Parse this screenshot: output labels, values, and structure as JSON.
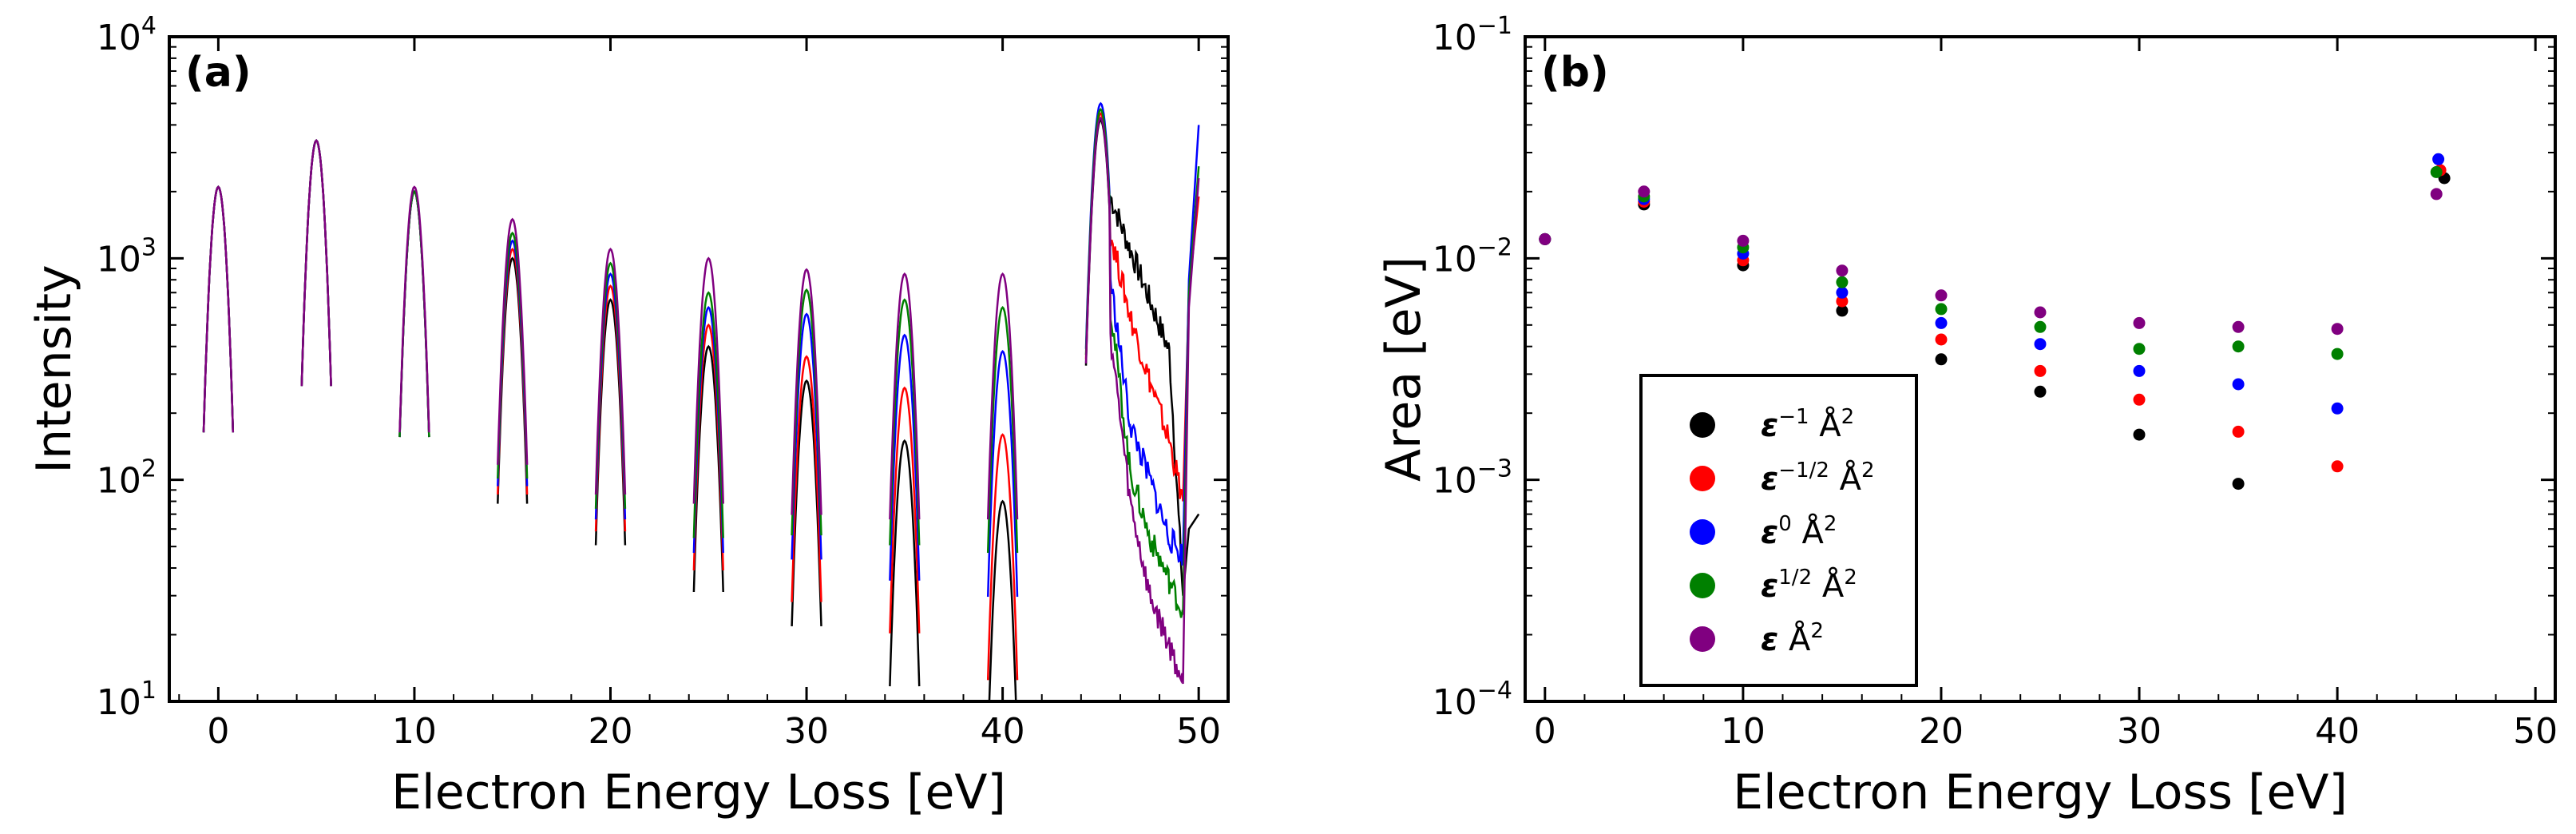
{
  "chart_data": [
    {
      "type": "line",
      "panel_label": "(a)",
      "xlabel": "Electron Energy Loss [eV]",
      "ylabel": "Intensity",
      "yscale": "log",
      "xlim": [
        -2.5,
        51.5
      ],
      "ylim": [
        10,
        10000
      ],
      "grid": false,
      "x_ticks": [
        0,
        10,
        20,
        30,
        40,
        50
      ],
      "x_tick_labels": [
        "0",
        "10",
        "20",
        "30",
        "40",
        "50"
      ],
      "y_ticks": [
        {
          "base": "10",
          "exp": "1"
        },
        {
          "base": "10",
          "exp": "2"
        },
        {
          "base": "10",
          "exp": "3"
        },
        {
          "base": "10",
          "exp": "4"
        }
      ],
      "peak_centers": [
        0,
        5,
        10,
        15,
        20,
        25,
        30,
        35,
        40,
        45
      ],
      "series": [
        {
          "name": "eps^-1",
          "color": "#000000",
          "peaks": [
            2100,
            3400,
            2000,
            1000,
            650,
            400,
            280,
            150,
            80,
            4200
          ],
          "tail": {
            "x": [
              45.5,
              46.5,
              47.5,
              48.5,
              49.2
            ],
            "y": [
              1900,
              1100,
              650,
              380,
              30
            ]
          },
          "edge": {
            "x": [
              49.5,
              50.0
            ],
            "y": [
              60,
              70
            ]
          }
        },
        {
          "name": "eps^-1/2",
          "color": "#ff0000",
          "peaks": [
            2100,
            3400,
            2000,
            1100,
            750,
            500,
            360,
            260,
            160,
            4500
          ],
          "tail": {
            "x": [
              45.5,
              46.5,
              47.5,
              48.5,
              49.2
            ],
            "y": [
              1300,
              550,
              280,
              150,
              80
            ]
          },
          "edge": {
            "x": [
              49.5,
              50.0
            ],
            "y": [
              700,
              1900
            ]
          }
        },
        {
          "name": "eps^0",
          "color": "#0000ff",
          "peaks": [
            2100,
            3400,
            2000,
            1200,
            850,
            600,
            560,
            450,
            380,
            5000
          ],
          "tail": {
            "x": [
              45.5,
              46.5,
              47.5,
              48.5,
              49.2
            ],
            "y": [
              800,
              180,
              100,
              55,
              45
            ]
          },
          "edge": {
            "x": [
              49.5,
              50.0
            ],
            "y": [
              800,
              4000
            ]
          }
        },
        {
          "name": "eps^1/2",
          "color": "#008000",
          "peaks": [
            2100,
            3400,
            2000,
            1300,
            950,
            700,
            720,
            650,
            600,
            4700
          ],
          "tail": {
            "x": [
              45.5,
              46.5,
              47.5,
              48.5,
              49.2
            ],
            "y": [
              600,
              110,
              55,
              35,
              25
            ]
          },
          "edge": {
            "x": [
              49.5,
              50.0
            ],
            "y": [
              700,
              2600
            ]
          }
        },
        {
          "name": "eps^1",
          "color": "#800080",
          "peaks": [
            2100,
            3400,
            2100,
            1500,
            1100,
            1000,
            890,
            850,
            850,
            4300
          ],
          "tail": {
            "x": [
              45.5,
              46.5,
              47.5,
              48.5,
              49.2
            ],
            "y": [
              450,
              80,
              30,
              18,
              12
            ]
          },
          "edge": {
            "x": [
              49.5,
              50.0
            ],
            "y": [
              600,
              2300
            ]
          }
        }
      ]
    },
    {
      "type": "scatter",
      "panel_label": "(b)",
      "xlabel": "Electron Energy Loss [eV]",
      "ylabel": "Area [eV]",
      "yscale": "log",
      "xlim": [
        -1,
        51
      ],
      "ylim": [
        0.0001,
        0.1
      ],
      "grid": false,
      "x_ticks": [
        0,
        10,
        20,
        30,
        40,
        50
      ],
      "x_tick_labels": [
        "0",
        "10",
        "20",
        "30",
        "40",
        "50"
      ],
      "y_ticks": [
        {
          "base": "10",
          "exp": "−4"
        },
        {
          "base": "10",
          "exp": "−3"
        },
        {
          "base": "10",
          "exp": "−2"
        },
        {
          "base": "10",
          "exp": "−1"
        }
      ],
      "legend_position": "lower-center",
      "series": [
        {
          "name": "ε",
          "sup": "−1",
          "unit": " Å",
          "unit_sup": "2",
          "color": "#000000",
          "x": [
            0,
            5,
            10,
            15,
            20,
            25,
            30,
            35,
            45.4
          ],
          "y": [
            0.0122,
            0.0175,
            0.0093,
            0.0058,
            0.0035,
            0.0025,
            0.0016,
            0.00096,
            0.023
          ]
        },
        {
          "name": "ε",
          "sup": "−1/2",
          "unit": " Å",
          "unit_sup": "2",
          "color": "#ff0000",
          "x": [
            0,
            5,
            10,
            15,
            20,
            25,
            30,
            35,
            40,
            45.2
          ],
          "y": [
            0.0122,
            0.018,
            0.0098,
            0.0064,
            0.0043,
            0.0031,
            0.0023,
            0.00165,
            0.00115,
            0.025
          ]
        },
        {
          "name": "ε",
          "sup": "0",
          "unit": " Å",
          "unit_sup": "2",
          "color": "#0000ff",
          "x": [
            0,
            5,
            10,
            15,
            20,
            25,
            30,
            35,
            40,
            45.1
          ],
          "y": [
            0.0122,
            0.0185,
            0.0105,
            0.007,
            0.0051,
            0.0041,
            0.0031,
            0.0027,
            0.0021,
            0.028
          ]
        },
        {
          "name": "ε",
          "sup": "1/2",
          "unit": " Å",
          "unit_sup": "2",
          "color": "#008000",
          "x": [
            0,
            5,
            10,
            15,
            20,
            25,
            30,
            35,
            40,
            45.0
          ],
          "y": [
            0.0122,
            0.019,
            0.0112,
            0.0078,
            0.0059,
            0.0049,
            0.0039,
            0.004,
            0.0037,
            0.0245
          ]
        },
        {
          "name": "ε",
          "sup": "",
          "unit": " Å",
          "unit_sup": "2",
          "color": "#800080",
          "x": [
            0,
            5,
            10,
            15,
            20,
            25,
            30,
            35,
            40,
            45.0
          ],
          "y": [
            0.0122,
            0.02,
            0.012,
            0.0088,
            0.0068,
            0.0057,
            0.0051,
            0.0049,
            0.0048,
            0.0195
          ]
        }
      ]
    }
  ]
}
